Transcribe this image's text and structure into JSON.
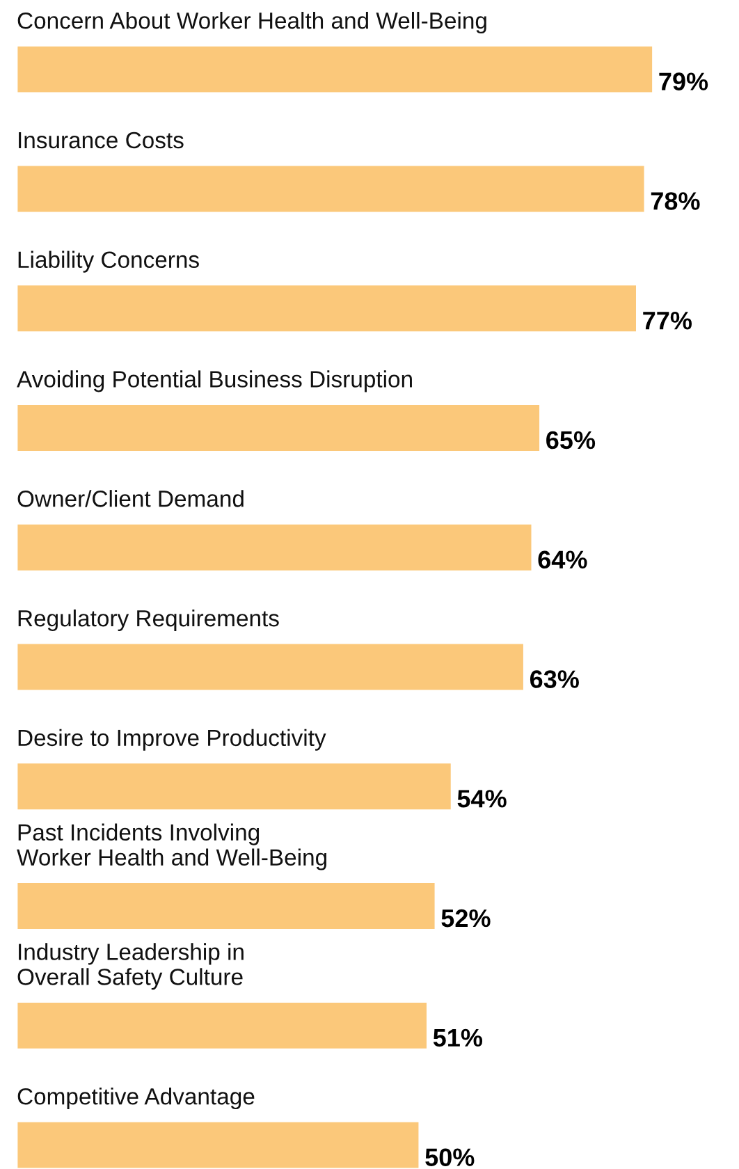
{
  "chart_data": {
    "type": "bar",
    "orientation": "horizontal",
    "categories": [
      "Concern About Worker Health and Well-Being",
      "Insurance Costs",
      "Liability Concerns",
      "Avoiding Potential Business Disruption",
      "Owner/Client Demand",
      "Regulatory Requirements",
      "Desire to Improve Productivity",
      "Past Incidents Involving\nWorker Health and Well-Being",
      "Industry Leadership in\nOverall Safety Culture",
      "Competitive Advantage"
    ],
    "values": [
      79,
      78,
      77,
      65,
      64,
      63,
      54,
      52,
      51,
      50
    ],
    "value_labels": [
      "79%",
      "78%",
      "77%",
      "65%",
      "64%",
      "63%",
      "54%",
      "52%",
      "51%",
      "50%"
    ],
    "color": "#fbc87a"
  }
}
